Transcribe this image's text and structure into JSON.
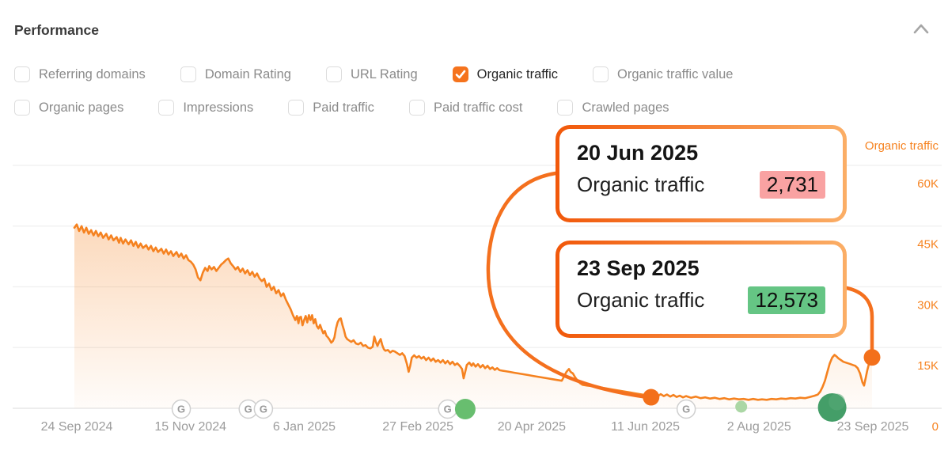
{
  "header": {
    "title": "Performance",
    "collapse_icon": "chevron-up"
  },
  "metric_toggles": {
    "rows": [
      [
        {
          "label": "Referring domains",
          "checked": false
        },
        {
          "label": "Domain Rating",
          "checked": false
        },
        {
          "label": "URL Rating",
          "checked": false
        },
        {
          "label": "Organic traffic",
          "checked": true
        },
        {
          "label": "Organic traffic value",
          "checked": false
        }
      ],
      [
        {
          "label": "Organic pages",
          "checked": false
        },
        {
          "label": "Impressions",
          "checked": false
        },
        {
          "label": "Paid traffic",
          "checked": false
        },
        {
          "label": "Paid traffic cost",
          "checked": false
        },
        {
          "label": "Crawled pages",
          "checked": false
        }
      ]
    ]
  },
  "tooltips": [
    {
      "date": "20 Jun 2025",
      "metric": "Organic traffic",
      "value": "2,731",
      "highlight_color": "#F9A2A2"
    },
    {
      "date": "23 Sep 2025",
      "metric": "Organic traffic",
      "value": "12,573",
      "highlight_color": "#65C584"
    }
  ],
  "colors": {
    "line": "#F58220",
    "marker_dot": "#F3701B",
    "leader": "#F4701E",
    "tooltip_border_from": "#F1580A",
    "tooltip_border_to": "#FBAE66",
    "grid": "#EFEFEF",
    "baseline": "#E2E2E2",
    "axis_label": "#F6821F",
    "date_label": "#9C9C9C",
    "checkbox_checked": "#F5731D",
    "g_badge_border": "#CFCFCF",
    "g_badge_text": "#9A9A9A"
  },
  "chart_data": {
    "type": "area",
    "title": "Organic traffic",
    "y_axis_title": "Organic traffic",
    "ylabel_side": "right",
    "grid": true,
    "ylim": [
      0,
      60000
    ],
    "y_tick_labels": [
      "60K",
      "45K",
      "30K",
      "15K",
      "0"
    ],
    "y_tick_values": [
      60000,
      45000,
      30000,
      15000,
      0
    ],
    "x_tick_labels": [
      "24 Sep 2024",
      "15 Nov 2024",
      "6 Jan 2025",
      "27 Feb 2025",
      "20 Apr 2025",
      "11 Jun 2025",
      "2 Aug 2025",
      "23 Sep 2025"
    ],
    "series_name": "Organic traffic",
    "points": [
      [
        0,
        44600
      ],
      [
        0.003,
        45400
      ],
      [
        0.006,
        43800
      ],
      [
        0.009,
        45000
      ],
      [
        0.012,
        43400
      ],
      [
        0.015,
        44600
      ],
      [
        0.018,
        43100
      ],
      [
        0.021,
        44000
      ],
      [
        0.024,
        42700
      ],
      [
        0.027,
        43800
      ],
      [
        0.03,
        42500
      ],
      [
        0.033,
        43400
      ],
      [
        0.036,
        42100
      ],
      [
        0.04,
        43100
      ],
      [
        0.043,
        41700
      ],
      [
        0.046,
        42700
      ],
      [
        0.049,
        41500
      ],
      [
        0.053,
        42300
      ],
      [
        0.056,
        40900
      ],
      [
        0.058,
        42100
      ],
      [
        0.061,
        40700
      ],
      [
        0.064,
        41700
      ],
      [
        0.068,
        40500
      ],
      [
        0.071,
        41500
      ],
      [
        0.074,
        40100
      ],
      [
        0.077,
        41100
      ],
      [
        0.08,
        39700
      ],
      [
        0.083,
        40700
      ],
      [
        0.086,
        39600
      ],
      [
        0.09,
        40300
      ],
      [
        0.093,
        39200
      ],
      [
        0.096,
        40100
      ],
      [
        0.099,
        38800
      ],
      [
        0.102,
        39700
      ],
      [
        0.105,
        38600
      ],
      [
        0.109,
        39400
      ],
      [
        0.112,
        38200
      ],
      [
        0.115,
        39200
      ],
      [
        0.118,
        38000
      ],
      [
        0.121,
        38800
      ],
      [
        0.124,
        37600
      ],
      [
        0.128,
        38600
      ],
      [
        0.131,
        37400
      ],
      [
        0.134,
        38200
      ],
      [
        0.137,
        37000
      ],
      [
        0.14,
        37800
      ],
      [
        0.143,
        36600
      ],
      [
        0.146,
        36200
      ],
      [
        0.149,
        35500
      ],
      [
        0.152,
        34300
      ],
      [
        0.155,
        32300
      ],
      [
        0.158,
        31600
      ],
      [
        0.161,
        33500
      ],
      [
        0.164,
        34700
      ],
      [
        0.167,
        33900
      ],
      [
        0.169,
        35100
      ],
      [
        0.172,
        34300
      ],
      [
        0.175,
        34900
      ],
      [
        0.178,
        33900
      ],
      [
        0.181,
        34700
      ],
      [
        0.184,
        35500
      ],
      [
        0.187,
        36000
      ],
      [
        0.19,
        36600
      ],
      [
        0.193,
        37000
      ],
      [
        0.196,
        35800
      ],
      [
        0.199,
        35100
      ],
      [
        0.202,
        34300
      ],
      [
        0.205,
        34900
      ],
      [
        0.208,
        33700
      ],
      [
        0.211,
        34500
      ],
      [
        0.214,
        33300
      ],
      [
        0.217,
        34100
      ],
      [
        0.22,
        32900
      ],
      [
        0.223,
        33700
      ],
      [
        0.226,
        32500
      ],
      [
        0.229,
        33300
      ],
      [
        0.232,
        32100
      ],
      [
        0.235,
        31400
      ],
      [
        0.238,
        32000
      ],
      [
        0.241,
        30000
      ],
      [
        0.244,
        30800
      ],
      [
        0.247,
        29200
      ],
      [
        0.25,
        30000
      ],
      [
        0.253,
        28400
      ],
      [
        0.256,
        29200
      ],
      [
        0.259,
        27700
      ],
      [
        0.262,
        28400
      ],
      [
        0.265,
        26900
      ],
      [
        0.268,
        25700
      ],
      [
        0.271,
        24500
      ],
      [
        0.274,
        23000
      ],
      [
        0.277,
        21800
      ],
      [
        0.279,
        22800
      ],
      [
        0.281,
        21000
      ],
      [
        0.282,
        22400
      ],
      [
        0.284,
        22600
      ],
      [
        0.286,
        20500
      ],
      [
        0.288,
        21800
      ],
      [
        0.29,
        22800
      ],
      [
        0.292,
        21200
      ],
      [
        0.294,
        23000
      ],
      [
        0.296,
        21800
      ],
      [
        0.298,
        23000
      ],
      [
        0.3,
        21000
      ],
      [
        0.302,
        22000
      ],
      [
        0.304,
        20300
      ],
      [
        0.306,
        19700
      ],
      [
        0.308,
        20600
      ],
      [
        0.31,
        19500
      ],
      [
        0.312,
        18500
      ],
      [
        0.314,
        19100
      ],
      [
        0.316,
        17900
      ],
      [
        0.318,
        17500
      ],
      [
        0.32,
        16900
      ],
      [
        0.322,
        16200
      ],
      [
        0.324,
        16600
      ],
      [
        0.326,
        17500
      ],
      [
        0.328,
        19700
      ],
      [
        0.33,
        21200
      ],
      [
        0.332,
        22000
      ],
      [
        0.334,
        22200
      ],
      [
        0.336,
        20600
      ],
      [
        0.338,
        19300
      ],
      [
        0.34,
        17700
      ],
      [
        0.342,
        17100
      ],
      [
        0.344,
        16800
      ],
      [
        0.347,
        16400
      ],
      [
        0.35,
        16800
      ],
      [
        0.353,
        16000
      ],
      [
        0.356,
        15800
      ],
      [
        0.359,
        16200
      ],
      [
        0.362,
        15400
      ],
      [
        0.365,
        15600
      ],
      [
        0.368,
        15000
      ],
      [
        0.371,
        14800
      ],
      [
        0.374,
        15200
      ],
      [
        0.376,
        17700
      ],
      [
        0.378,
        16400
      ],
      [
        0.38,
        15400
      ],
      [
        0.382,
        16400
      ],
      [
        0.384,
        17100
      ],
      [
        0.386,
        15600
      ],
      [
        0.388,
        14600
      ],
      [
        0.39,
        14200
      ],
      [
        0.393,
        14400
      ],
      [
        0.396,
        13800
      ],
      [
        0.399,
        14200
      ],
      [
        0.402,
        14000
      ],
      [
        0.405,
        13600
      ],
      [
        0.408,
        13200
      ],
      [
        0.411,
        13600
      ],
      [
        0.414,
        12900
      ],
      [
        0.417,
        10900
      ],
      [
        0.419,
        9000
      ],
      [
        0.421,
        10500
      ],
      [
        0.423,
        12500
      ],
      [
        0.426,
        13100
      ],
      [
        0.429,
        12500
      ],
      [
        0.432,
        12900
      ],
      [
        0.435,
        12300
      ],
      [
        0.438,
        12700
      ],
      [
        0.441,
        11900
      ],
      [
        0.444,
        12500
      ],
      [
        0.447,
        11700
      ],
      [
        0.45,
        12300
      ],
      [
        0.453,
        11500
      ],
      [
        0.456,
        11900
      ],
      [
        0.459,
        11300
      ],
      [
        0.462,
        11900
      ],
      [
        0.465,
        11100
      ],
      [
        0.468,
        11700
      ],
      [
        0.471,
        10900
      ],
      [
        0.474,
        11500
      ],
      [
        0.477,
        10700
      ],
      [
        0.48,
        11100
      ],
      [
        0.483,
        10500
      ],
      [
        0.486,
        9700
      ],
      [
        0.488,
        7400
      ],
      [
        0.49,
        9000
      ],
      [
        0.492,
        10700
      ],
      [
        0.495,
        11300
      ],
      [
        0.498,
        10500
      ],
      [
        0.5,
        11100
      ],
      [
        0.503,
        10300
      ],
      [
        0.506,
        10900
      ],
      [
        0.509,
        10100
      ],
      [
        0.512,
        10700
      ],
      [
        0.515,
        9900
      ],
      [
        0.518,
        10500
      ],
      [
        0.521,
        9700
      ],
      [
        0.524,
        10100
      ],
      [
        0.527,
        9500
      ],
      [
        0.53,
        9900
      ],
      [
        0.533,
        9400
      ],
      [
        0.539,
        9200
      ],
      [
        0.545,
        9000
      ],
      [
        0.551,
        8800
      ],
      [
        0.557,
        8600
      ],
      [
        0.563,
        8400
      ],
      [
        0.569,
        8200
      ],
      [
        0.575,
        8000
      ],
      [
        0.581,
        7800
      ],
      [
        0.587,
        7600
      ],
      [
        0.593,
        7400
      ],
      [
        0.599,
        7200
      ],
      [
        0.605,
        7000
      ],
      [
        0.611,
        6800
      ],
      [
        0.617,
        9000
      ],
      [
        0.62,
        9700
      ],
      [
        0.622,
        9000
      ],
      [
        0.625,
        8600
      ],
      [
        0.628,
        7600
      ],
      [
        0.631,
        6800
      ],
      [
        0.634,
        6200
      ],
      [
        0.637,
        5800
      ],
      [
        0.643,
        5600
      ],
      [
        0.649,
        5500
      ],
      [
        0.655,
        5300
      ],
      [
        0.661,
        5100
      ],
      [
        0.667,
        4900
      ],
      [
        0.673,
        4700
      ],
      [
        0.679,
        4500
      ],
      [
        0.685,
        4300
      ],
      [
        0.691,
        4100
      ],
      [
        0.697,
        3900
      ],
      [
        0.703,
        3700
      ],
      [
        0.709,
        3500
      ],
      [
        0.715,
        3300
      ],
      [
        0.721,
        3000
      ],
      [
        0.723,
        2731
      ],
      [
        0.728,
        3300
      ],
      [
        0.731,
        2900
      ],
      [
        0.735,
        3500
      ],
      [
        0.739,
        3000
      ],
      [
        0.743,
        3400
      ],
      [
        0.747,
        2900
      ],
      [
        0.751,
        3300
      ],
      [
        0.755,
        2800
      ],
      [
        0.759,
        3100
      ],
      [
        0.763,
        2700
      ],
      [
        0.767,
        3000
      ],
      [
        0.773,
        2600
      ],
      [
        0.779,
        2900
      ],
      [
        0.785,
        2500
      ],
      [
        0.791,
        2700
      ],
      [
        0.797,
        2400
      ],
      [
        0.803,
        2600
      ],
      [
        0.809,
        2300
      ],
      [
        0.815,
        2500
      ],
      [
        0.821,
        2200
      ],
      [
        0.827,
        2400
      ],
      [
        0.833,
        2200
      ],
      [
        0.839,
        2300
      ],
      [
        0.845,
        2100
      ],
      [
        0.851,
        2300
      ],
      [
        0.857,
        2100
      ],
      [
        0.862,
        2200
      ],
      [
        0.868,
        2100
      ],
      [
        0.874,
        2300
      ],
      [
        0.88,
        2200
      ],
      [
        0.886,
        2400
      ],
      [
        0.892,
        2300
      ],
      [
        0.898,
        2500
      ],
      [
        0.904,
        2400
      ],
      [
        0.91,
        2600
      ],
      [
        0.916,
        2500
      ],
      [
        0.922,
        2800
      ],
      [
        0.928,
        3100
      ],
      [
        0.932,
        3400
      ],
      [
        0.935,
        4100
      ],
      [
        0.938,
        5300
      ],
      [
        0.941,
        6800
      ],
      [
        0.944,
        9000
      ],
      [
        0.947,
        11100
      ],
      [
        0.95,
        12500
      ],
      [
        0.953,
        13200
      ],
      [
        0.955,
        12900
      ],
      [
        0.958,
        12300
      ],
      [
        0.961,
        11900
      ],
      [
        0.964,
        11500
      ],
      [
        0.967,
        11300
      ],
      [
        0.97,
        11100
      ],
      [
        0.973,
        10900
      ],
      [
        0.976,
        10700
      ],
      [
        0.979,
        10500
      ],
      [
        0.982,
        9900
      ],
      [
        0.985,
        8600
      ],
      [
        0.988,
        6400
      ],
      [
        0.99,
        5600
      ],
      [
        0.992,
        7400
      ],
      [
        0.994,
        9400
      ],
      [
        0.996,
        10900
      ],
      [
        0.998,
        11900
      ],
      [
        1,
        12573
      ]
    ],
    "marked_points": [
      {
        "date": "20 Jun 2025",
        "value": 2731,
        "f": 0.723
      },
      {
        "date": "23 Sep 2025",
        "value": 12573,
        "f": 1.0
      }
    ],
    "google_update_markers_f": [
      0.134,
      0.218,
      0.237,
      0.468,
      0.767
    ],
    "event_dots": [
      {
        "f": 0.49,
        "size": "medium",
        "color": "#68BE6F"
      },
      {
        "f": 0.836,
        "size": "small",
        "color": "#ABD7A5"
      },
      {
        "f": 0.95,
        "size": "large",
        "color": "#449E68"
      }
    ]
  }
}
